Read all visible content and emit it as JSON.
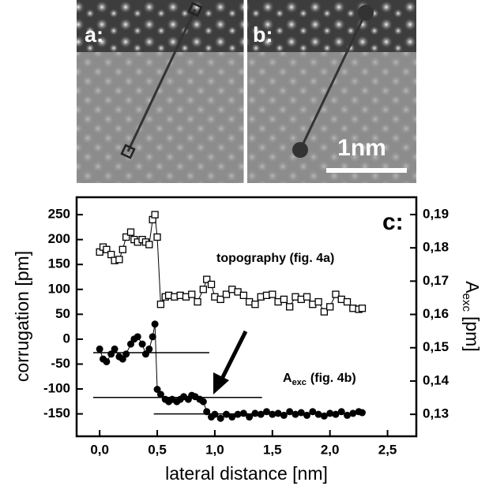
{
  "chart_data": {
    "type": "scatter",
    "panel_labels": [
      "a:",
      "b:"
    ],
    "scale_bar_label": "1nm",
    "panel_label": "c:",
    "xlabel": "lateral distance [nm]",
    "ylabel": "corrugation [pm]",
    "y2label": {
      "text": "A",
      "sub": "exc",
      "rest": "[pm]"
    },
    "xlim": [
      -0.2,
      2.75
    ],
    "ylim": [
      -195,
      285
    ],
    "y2lim": [
      0.1234,
      0.1952
    ],
    "xticks": [
      {
        "value": 0,
        "label": "0,0"
      },
      {
        "value": 0.5,
        "label": "0,5"
      },
      {
        "value": 1,
        "label": "1,0"
      },
      {
        "value": 1.5,
        "label": "1,5"
      },
      {
        "value": 2,
        "label": "2,0"
      },
      {
        "value": 2.5,
        "label": "2,5"
      }
    ],
    "yticks": [
      -150,
      -100,
      -50,
      0,
      50,
      100,
      150,
      200,
      250
    ],
    "y2ticks": [
      {
        "value": 0.13,
        "label": "0,13"
      },
      {
        "value": 0.14,
        "label": "0,14"
      },
      {
        "value": 0.15,
        "label": "0,15"
      },
      {
        "value": 0.16,
        "label": "0,16"
      },
      {
        "value": 0.17,
        "label": "0,17"
      },
      {
        "value": 0.18,
        "label": "0,18"
      },
      {
        "value": 0.19,
        "label": "0,19"
      }
    ],
    "series": [
      {
        "name": "topography (fig. 4a)",
        "marker": "square",
        "color": "#000000",
        "x": [
          0,
          0.03,
          0.06,
          0.1,
          0.13,
          0.17,
          0.2,
          0.23,
          0.27,
          0.3,
          0.33,
          0.37,
          0.4,
          0.43,
          0.46,
          0.48,
          0.5,
          0.53,
          0.57,
          0.6,
          0.65,
          0.7,
          0.75,
          0.8,
          0.85,
          0.9,
          0.93,
          0.97,
          1,
          1.05,
          1.1,
          1.15,
          1.2,
          1.25,
          1.3,
          1.35,
          1.4,
          1.45,
          1.5,
          1.55,
          1.6,
          1.65,
          1.7,
          1.75,
          1.8,
          1.85,
          1.9,
          1.95,
          2,
          2.05,
          2.1,
          2.15,
          2.2,
          2.25,
          2.28
        ],
        "values": [
          175,
          185,
          180,
          170,
          158,
          160,
          180,
          205,
          215,
          200,
          195,
          200,
          195,
          190,
          240,
          250,
          205,
          70,
          85,
          88,
          85,
          88,
          85,
          90,
          75,
          100,
          120,
          110,
          85,
          80,
          90,
          100,
          95,
          88,
          75,
          70,
          85,
          88,
          90,
          75,
          80,
          65,
          85,
          80,
          85,
          70,
          75,
          55,
          65,
          90,
          80,
          75,
          62,
          60,
          62
        ]
      },
      {
        "name": "A",
        "name_sub": "exc",
        "name_rest": "(fig. 4b)",
        "marker": "circle",
        "color": "#000000",
        "axis": "y2",
        "x": [
          0,
          0.03,
          0.06,
          0.1,
          0.13,
          0.17,
          0.2,
          0.23,
          0.27,
          0.3,
          0.33,
          0.37,
          0.4,
          0.43,
          0.46,
          0.48,
          0.5,
          0.53,
          0.57,
          0.6,
          0.63,
          0.67,
          0.7,
          0.73,
          0.77,
          0.8,
          0.83,
          0.87,
          0.9,
          0.93,
          0.97,
          1,
          1.05,
          1.1,
          1.15,
          1.2,
          1.25,
          1.3,
          1.35,
          1.4,
          1.45,
          1.5,
          1.55,
          1.6,
          1.65,
          1.7,
          1.75,
          1.8,
          1.85,
          1.9,
          1.95,
          2,
          2.05,
          2.1,
          2.15,
          2.2,
          2.25,
          2.28
        ],
        "values": [
          0.1496,
          0.1466,
          0.1458,
          0.1481,
          0.1496,
          0.1473,
          0.1466,
          0.1481,
          0.1511,
          0.1526,
          0.1533,
          0.1511,
          0.1481,
          0.1496,
          0.1533,
          0.1571,
          0.1375,
          0.136,
          0.1345,
          0.1338,
          0.1345,
          0.1338,
          0.1345,
          0.1353,
          0.1345,
          0.1357,
          0.1353,
          0.1345,
          0.1338,
          0.1308,
          0.1292,
          0.13,
          0.1288,
          0.13,
          0.1292,
          0.13,
          0.1303,
          0.1292,
          0.1303,
          0.13,
          0.1308,
          0.13,
          0.1303,
          0.1297,
          0.1308,
          0.13,
          0.1305,
          0.1297,
          0.1308,
          0.13,
          0.1295,
          0.1303,
          0.13,
          0.1308,
          0.1297,
          0.1303,
          0.1308,
          0.1305
        ]
      }
    ],
    "reference_lines": [
      {
        "y": -27,
        "x": [
          -0.056,
          0.952
        ]
      },
      {
        "y": -117,
        "x": [
          -0.056,
          1.41
        ]
      },
      {
        "y": -150,
        "x": [
          0.47,
          1.41
        ]
      }
    ]
  }
}
